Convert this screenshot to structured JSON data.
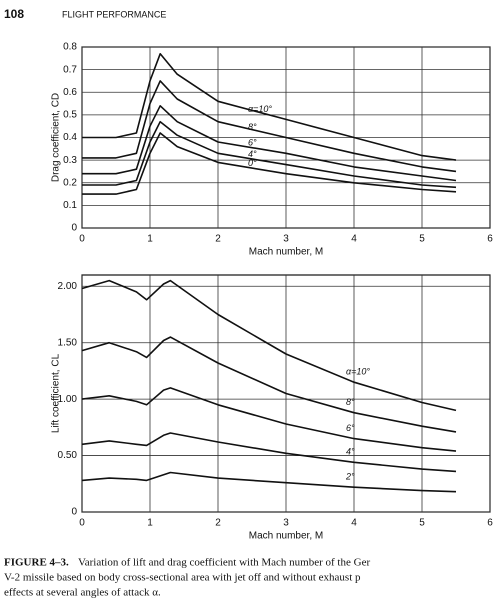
{
  "header": {
    "page": "108",
    "title": "FLIGHT PERFORMANCE"
  },
  "chart_data": [
    {
      "type": "line",
      "ylabel": "Drag coefficient, CD",
      "xlabel": "Mach number, M",
      "xlim": [
        0,
        6
      ],
      "xticks": [
        0,
        1,
        2,
        3,
        4,
        5,
        6
      ],
      "ylim": [
        0,
        0.8
      ],
      "yticks": [
        0,
        0.1,
        0.2,
        0.3,
        0.4,
        0.5,
        0.6,
        0.7,
        0.8
      ],
      "grid": true,
      "x": [
        0,
        0.5,
        0.8,
        1.0,
        1.15,
        1.4,
        2,
        3,
        4,
        5,
        5.5
      ],
      "series": [
        {
          "name": "α=10°",
          "color": "#111111",
          "values": [
            0.4,
            0.4,
            0.42,
            0.65,
            0.77,
            0.68,
            0.56,
            0.48,
            0.4,
            0.32,
            0.3
          ]
        },
        {
          "name": "8°",
          "color": "#111111",
          "values": [
            0.31,
            0.31,
            0.33,
            0.55,
            0.65,
            0.57,
            0.47,
            0.4,
            0.33,
            0.27,
            0.25
          ]
        },
        {
          "name": "6°",
          "color": "#111111",
          "values": [
            0.24,
            0.24,
            0.26,
            0.45,
            0.54,
            0.47,
            0.38,
            0.33,
            0.27,
            0.23,
            0.21
          ]
        },
        {
          "name": "4°",
          "color": "#111111",
          "values": [
            0.19,
            0.19,
            0.21,
            0.38,
            0.47,
            0.41,
            0.33,
            0.28,
            0.23,
            0.19,
            0.18
          ]
        },
        {
          "name": "0°",
          "color": "#111111",
          "values": [
            0.15,
            0.15,
            0.17,
            0.33,
            0.42,
            0.36,
            0.29,
            0.24,
            0.2,
            0.17,
            0.16
          ]
        }
      ]
    },
    {
      "type": "line",
      "ylabel": "Lift coefficient, CL",
      "xlabel": "Mach number, M",
      "xlim": [
        0,
        6
      ],
      "xticks": [
        0,
        1,
        2,
        3,
        4,
        5,
        6
      ],
      "ylim": [
        0,
        2.1
      ],
      "yticks": [
        0,
        {
          "value": 0.5,
          "label": "0.50"
        },
        {
          "value": 1,
          "label": "1.00"
        },
        {
          "value": 1.5,
          "label": "1.50"
        },
        {
          "value": 2,
          "label": "2.00"
        }
      ],
      "grid": true,
      "x": [
        0,
        0.4,
        0.8,
        0.95,
        1.2,
        1.3,
        2,
        3,
        4,
        5,
        5.5
      ],
      "series": [
        {
          "name": "α=10°",
          "color": "#111111",
          "values": [
            1.98,
            2.05,
            1.95,
            1.88,
            2.02,
            2.05,
            1.75,
            1.4,
            1.15,
            0.97,
            0.9
          ]
        },
        {
          "name": "8°",
          "color": "#111111",
          "values": [
            1.43,
            1.5,
            1.42,
            1.37,
            1.52,
            1.55,
            1.32,
            1.05,
            0.88,
            0.76,
            0.71
          ]
        },
        {
          "name": "6°",
          "color": "#111111",
          "values": [
            1.0,
            1.03,
            0.98,
            0.95,
            1.08,
            1.1,
            0.95,
            0.78,
            0.65,
            0.57,
            0.54
          ]
        },
        {
          "name": "4°",
          "color": "#111111",
          "values": [
            0.6,
            0.63,
            0.6,
            0.59,
            0.68,
            0.7,
            0.62,
            0.52,
            0.44,
            0.38,
            0.36
          ]
        },
        {
          "name": "2°",
          "color": "#111111",
          "values": [
            0.28,
            0.3,
            0.29,
            0.28,
            0.33,
            0.35,
            0.3,
            0.26,
            0.22,
            0.19,
            0.18
          ]
        }
      ]
    }
  ],
  "caption": {
    "label": "FIGURE 4–3.",
    "lines": [
      "Variation of lift and drag coefficient with Mach number of the Ger",
      "V-2 missile based on body cross-sectional area with jet off and without exhaust p",
      "effects at several angles of attack α."
    ]
  }
}
